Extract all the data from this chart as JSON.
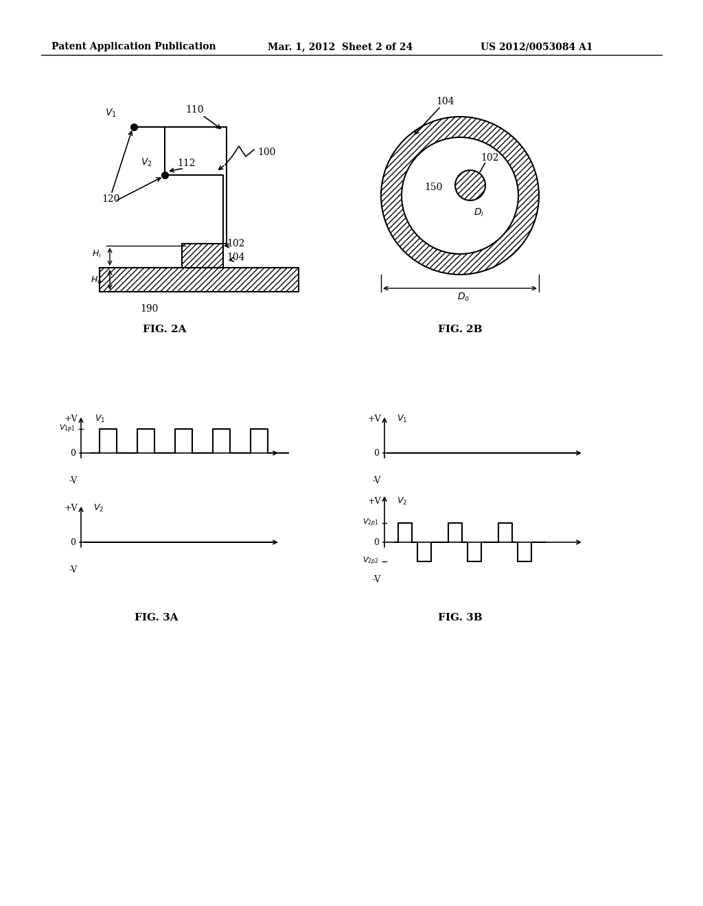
{
  "header_left": "Patent Application Publication",
  "header_mid": "Mar. 1, 2012  Sheet 2 of 24",
  "header_right": "US 2012/0053084 A1",
  "fig2a_label": "FIG. 2A",
  "fig2b_label": "FIG. 2B",
  "fig3a_label": "FIG. 3A",
  "fig3b_label": "FIG. 3B",
  "bg_color": "#ffffff",
  "line_color": "#000000",
  "hatch_color": "#000000"
}
